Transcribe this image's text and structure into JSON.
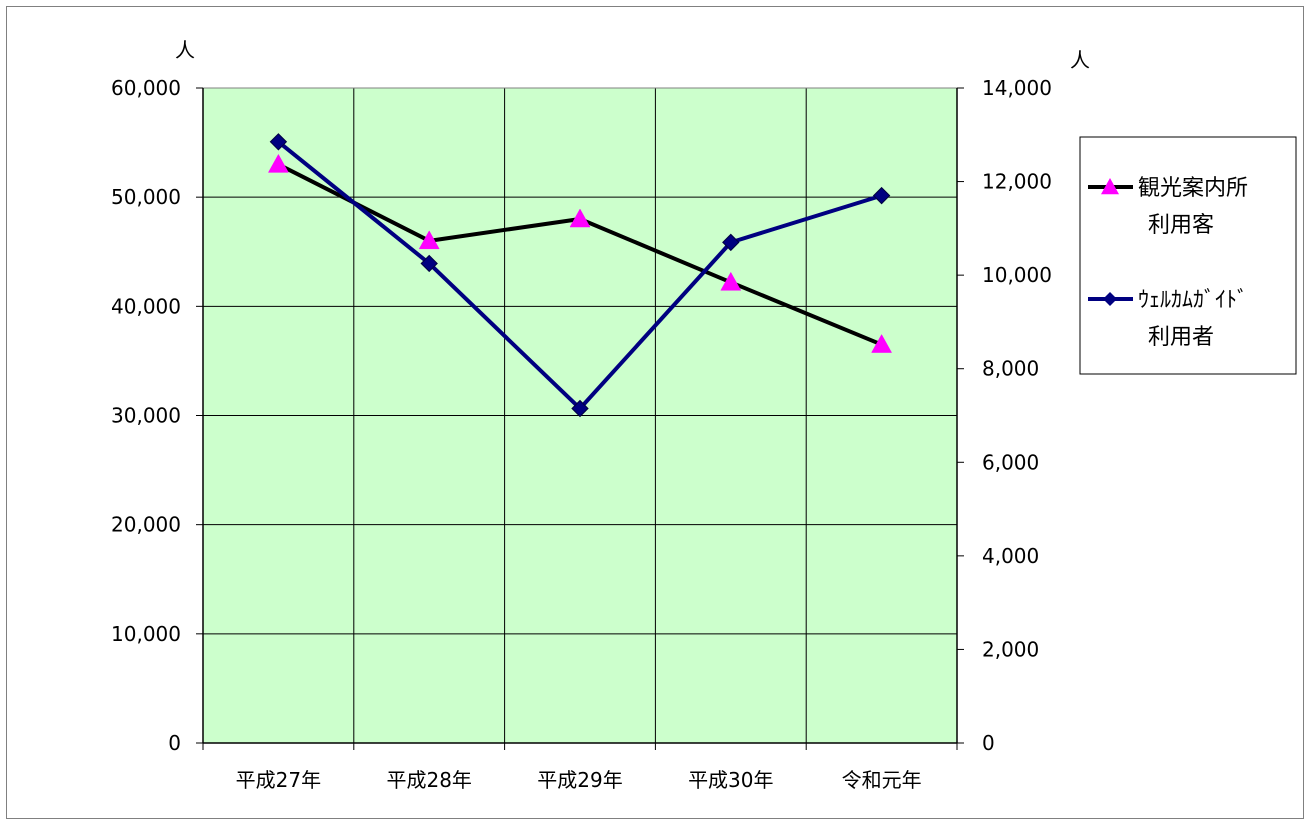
{
  "chart_data": {
    "type": "line",
    "categories": [
      "平成27年",
      "平成28年",
      "平成29年",
      "平成30年",
      "令和元年"
    ],
    "y_unit_left": "人",
    "y_unit_right": "人",
    "y_left": {
      "range": [
        0,
        60000
      ],
      "ticks": [
        "0",
        "10,000",
        "20,000",
        "30,000",
        "40,000",
        "50,000",
        "60,000"
      ],
      "tick_values": [
        0,
        10000,
        20000,
        30000,
        40000,
        50000,
        60000
      ]
    },
    "y_right": {
      "range": [
        0,
        14000
      ],
      "ticks": [
        "0",
        "2,000",
        "4,000",
        "6,000",
        "8,000",
        "10,000",
        "12,000",
        "14,000"
      ],
      "tick_values": [
        0,
        2000,
        4000,
        6000,
        8000,
        10000,
        12000,
        14000
      ]
    },
    "grid": true,
    "legend_position": "right",
    "series": [
      {
        "name": "観光案内所\n利用客",
        "legend_lines": [
          "観光案内所",
          "利用客"
        ],
        "axis": "left",
        "values": [
          53000,
          46000,
          48000,
          42200,
          36500
        ],
        "line_color": "#000000",
        "marker": "triangle",
        "marker_color": "#ff00ff"
      },
      {
        "name": "ｳｪﾙｶﾑｶﾞｲﾄﾞ\n利用者",
        "legend_lines": [
          "ｳｪﾙｶﾑｶﾞｲﾄﾞ",
          "利用者"
        ],
        "axis": "right",
        "values": [
          12850,
          10250,
          7150,
          10700,
          11700
        ],
        "line_color": "#000080",
        "marker": "diamond",
        "marker_color": "#000080"
      }
    ],
    "colors": {
      "plot_background": "#ccffcc",
      "grid": "#000000"
    }
  }
}
